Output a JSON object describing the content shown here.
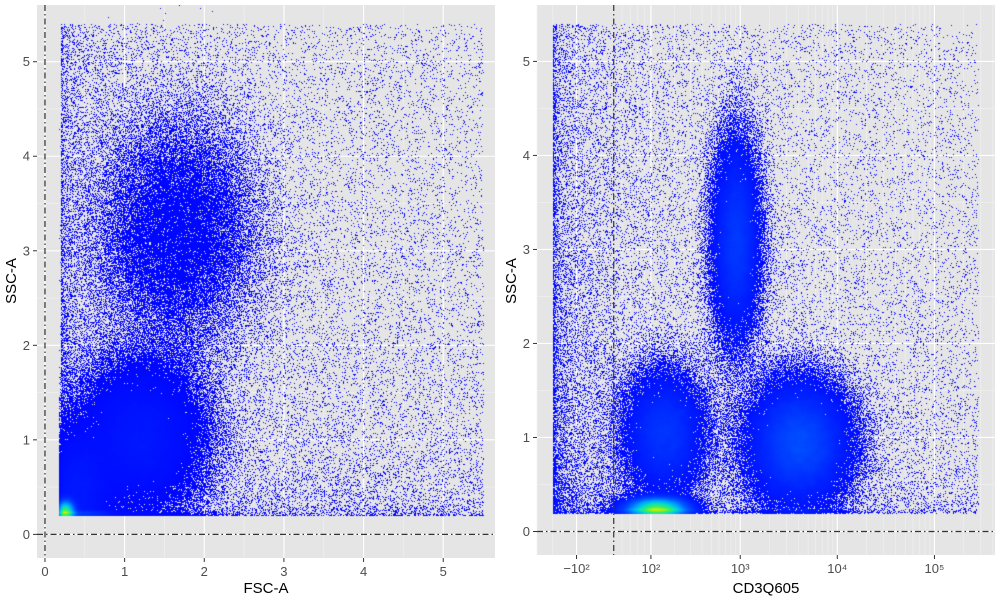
{
  "colors": {
    "panel_background": "#e5e5e5",
    "grid_major": "#ffffff",
    "grid_minor": "#f2f2f2",
    "low_density": "#0000ff",
    "density_ramp": [
      "#0000ff",
      "#0044ff",
      "#0099ff",
      "#00ddcc",
      "#44ee55",
      "#ccf000"
    ],
    "reference_line": "#333333"
  },
  "chart_data": [
    {
      "type": "scatter",
      "subtype": "density-colored flow cytometry dot plot",
      "xlabel": "FSC-A",
      "ylabel": "SSC-A",
      "xlim": [
        -0.1,
        5.65
      ],
      "ylim": [
        -0.25,
        5.6
      ],
      "x_ticks": [
        0,
        1,
        2,
        3,
        4,
        5
      ],
      "x_tick_labels": [
        "0",
        "1",
        "2",
        "3",
        "4",
        "5"
      ],
      "y_ticks": [
        0,
        1,
        2,
        3,
        4,
        5
      ],
      "y_tick_labels": [
        "0",
        "1",
        "2",
        "3",
        "4",
        "5"
      ],
      "reference_lines": {
        "x": 0,
        "y": 0,
        "style": "dash-dot"
      },
      "clusters": [
        {
          "x": 1.2,
          "y": 1.05,
          "sd_x": 0.35,
          "sd_y": 0.35,
          "rel_density": 1.0
        },
        {
          "x": 1.65,
          "y": 3.2,
          "sd_x": 0.45,
          "sd_y": 0.55,
          "rel_density": 0.5
        },
        {
          "x": 0.4,
          "y": 0.45,
          "sd_x": 0.2,
          "sd_y": 0.3,
          "rel_density": 0.5
        },
        {
          "x": 0.25,
          "y": 0.25,
          "sd_x": 0.05,
          "sd_y": 0.05,
          "rel_density": 0.6
        }
      ],
      "data_range": {
        "x": [
          0.2,
          5.5
        ],
        "y": [
          0.2,
          5.4
        ]
      },
      "grid": true,
      "legend": "none"
    },
    {
      "type": "scatter",
      "subtype": "density-colored flow cytometry dot plot",
      "xlabel": "CD3Q605",
      "ylabel": "SSC-A",
      "x_scale": "biexponential",
      "xlim": [
        -300,
        420000
      ],
      "ylim": [
        -0.25,
        5.6
      ],
      "x_ticks": [
        -100,
        100,
        1000,
        10000,
        100000
      ],
      "x_tick_labels": [
        "−10²",
        "10²",
        "10³",
        "10⁴",
        "10⁵"
      ],
      "y_ticks": [
        0,
        1,
        2,
        3,
        4,
        5
      ],
      "y_tick_labels": [
        "0",
        "1",
        "2",
        "3",
        "4",
        "5"
      ],
      "reference_lines": {
        "x": 0,
        "y": 0,
        "style": "dash-dot"
      },
      "clusters": [
        {
          "x": 4000,
          "y": 0.95,
          "sd_x_decades": 0.25,
          "sd_y": 0.3,
          "rel_density": 1.0
        },
        {
          "x": 900,
          "y": 3.1,
          "sd_x_decades": 0.12,
          "sd_y": 0.5,
          "rel_density": 0.55
        },
        {
          "x": 150,
          "y": 1.05,
          "sd_x_decades": 0.2,
          "sd_y": 0.3,
          "rel_density": 0.5
        },
        {
          "x": 120,
          "y": 0.25,
          "sd_x_decades": 0.15,
          "sd_y": 0.05,
          "rel_density": 0.6
        }
      ],
      "data_range": {
        "x": [
          -300,
          280000
        ],
        "y": [
          0.2,
          5.4
        ]
      },
      "grid": true,
      "legend": "none"
    }
  ]
}
